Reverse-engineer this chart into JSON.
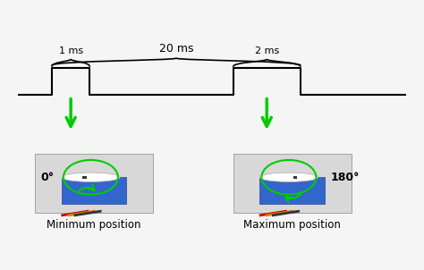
{
  "bg_color": "#f5f5f5",
  "pwm_line_color": "#000000",
  "arrow_color": "#00cc00",
  "brace_color": "#000000",
  "text_color": "#000000",
  "title": "20 ms",
  "label_1ms": "1 ms",
  "label_2ms": "2 ms",
  "label_min": "Minimum position",
  "label_max": "Maximum position",
  "label_0deg": "0°",
  "label_180deg": "180°",
  "servo_left_color": "#4466bb",
  "servo_right_color": "#4466bb"
}
